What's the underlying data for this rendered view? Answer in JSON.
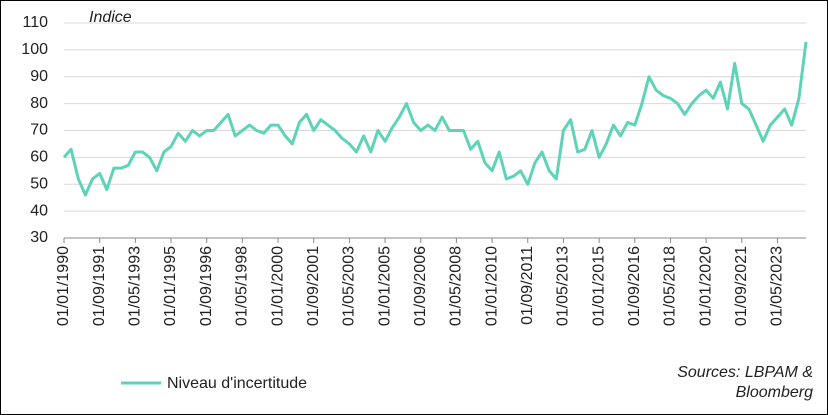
{
  "chart_data": {
    "type": "line",
    "y_label": "Indice",
    "x": [
      "01/01/1990",
      "01/05/1990",
      "01/09/1990",
      "01/01/1991",
      "01/05/1991",
      "01/09/1991",
      "01/01/1992",
      "01/05/1992",
      "01/09/1992",
      "01/01/1993",
      "01/05/1993",
      "01/09/1993",
      "01/01/1994",
      "01/05/1994",
      "01/09/1994",
      "01/01/1995",
      "01/05/1995",
      "01/09/1995",
      "01/01/1996",
      "01/05/1996",
      "01/09/1996",
      "01/01/1997",
      "01/05/1997",
      "01/09/1997",
      "01/01/1998",
      "01/05/1998",
      "01/09/1998",
      "01/01/1999",
      "01/05/1999",
      "01/09/1999",
      "01/01/2000",
      "01/05/2000",
      "01/09/2000",
      "01/01/2001",
      "01/05/2001",
      "01/09/2001",
      "01/01/2002",
      "01/05/2002",
      "01/09/2002",
      "01/01/2003",
      "01/05/2003",
      "01/09/2003",
      "01/01/2004",
      "01/05/2004",
      "01/09/2004",
      "01/01/2005",
      "01/05/2005",
      "01/09/2005",
      "01/01/2006",
      "01/05/2006",
      "01/09/2006",
      "01/01/2007",
      "01/05/2007",
      "01/09/2007",
      "01/01/2008",
      "01/05/2008",
      "01/09/2008",
      "01/01/2009",
      "01/05/2009",
      "01/09/2009",
      "01/01/2010",
      "01/05/2010",
      "01/09/2010",
      "01/01/2011",
      "01/05/2011",
      "01/09/2011",
      "01/01/2012",
      "01/05/2012",
      "01/09/2012",
      "01/01/2013",
      "01/05/2013",
      "01/09/2013",
      "01/01/2014",
      "01/05/2014",
      "01/09/2014",
      "01/01/2015",
      "01/05/2015",
      "01/09/2015",
      "01/01/2016",
      "01/05/2016",
      "01/09/2016",
      "01/01/2017",
      "01/05/2017",
      "01/09/2017",
      "01/01/2018",
      "01/05/2018",
      "01/09/2018",
      "01/01/2019",
      "01/05/2019",
      "01/09/2019",
      "01/01/2020",
      "01/05/2020",
      "01/09/2020",
      "01/01/2021",
      "01/05/2021",
      "01/09/2021",
      "01/01/2022",
      "01/05/2022",
      "01/09/2022",
      "01/01/2023",
      "01/05/2023",
      "01/09/2023",
      "01/01/2024",
      "01/05/2024",
      "01/09/2024"
    ],
    "series": [
      {
        "name": "Niveau d'incertitude",
        "color": "#5fd3b8",
        "values": [
          60,
          63,
          52,
          46,
          52,
          54,
          48,
          56,
          56,
          57,
          62,
          62,
          60,
          55,
          62,
          64,
          69,
          66,
          70,
          68,
          70,
          70,
          73,
          76,
          68,
          70,
          72,
          70,
          69,
          72,
          72,
          68,
          65,
          73,
          76,
          70,
          74,
          72,
          70,
          67,
          65,
          62,
          68,
          62,
          70,
          66,
          71,
          75,
          80,
          73,
          70,
          72,
          70,
          75,
          70,
          70,
          70,
          63,
          66,
          58,
          55,
          62,
          52,
          53,
          55,
          50,
          58,
          62,
          55,
          52,
          70,
          74,
          62,
          63,
          70,
          60,
          65,
          72,
          68,
          73,
          72,
          80,
          90,
          85,
          83,
          82,
          80,
          76,
          80,
          83,
          85,
          82,
          88,
          78,
          95,
          80,
          78,
          72,
          66,
          72,
          75,
          78,
          72,
          82,
          103
        ]
      }
    ],
    "xlim": [
      "01/01/1990",
      "01/09/2024"
    ],
    "xticks": [
      "01/01/1990",
      "01/09/1991",
      "01/05/1993",
      "01/01/1995",
      "01/09/1996",
      "01/05/1998",
      "01/01/2000",
      "01/09/2001",
      "01/05/2003",
      "01/01/2005",
      "01/09/2006",
      "01/05/2008",
      "01/01/2010",
      "01/09/2011",
      "01/05/2013",
      "01/01/2015",
      "01/09/2016",
      "01/05/2018",
      "01/01/2020",
      "01/09/2021",
      "01/05/2023"
    ],
    "ylim": [
      30,
      110
    ],
    "yticks": [
      30,
      40,
      50,
      60,
      70,
      80,
      90,
      100,
      110
    ],
    "grid": true,
    "source": "Sources: LBPAM & Bloomberg"
  }
}
